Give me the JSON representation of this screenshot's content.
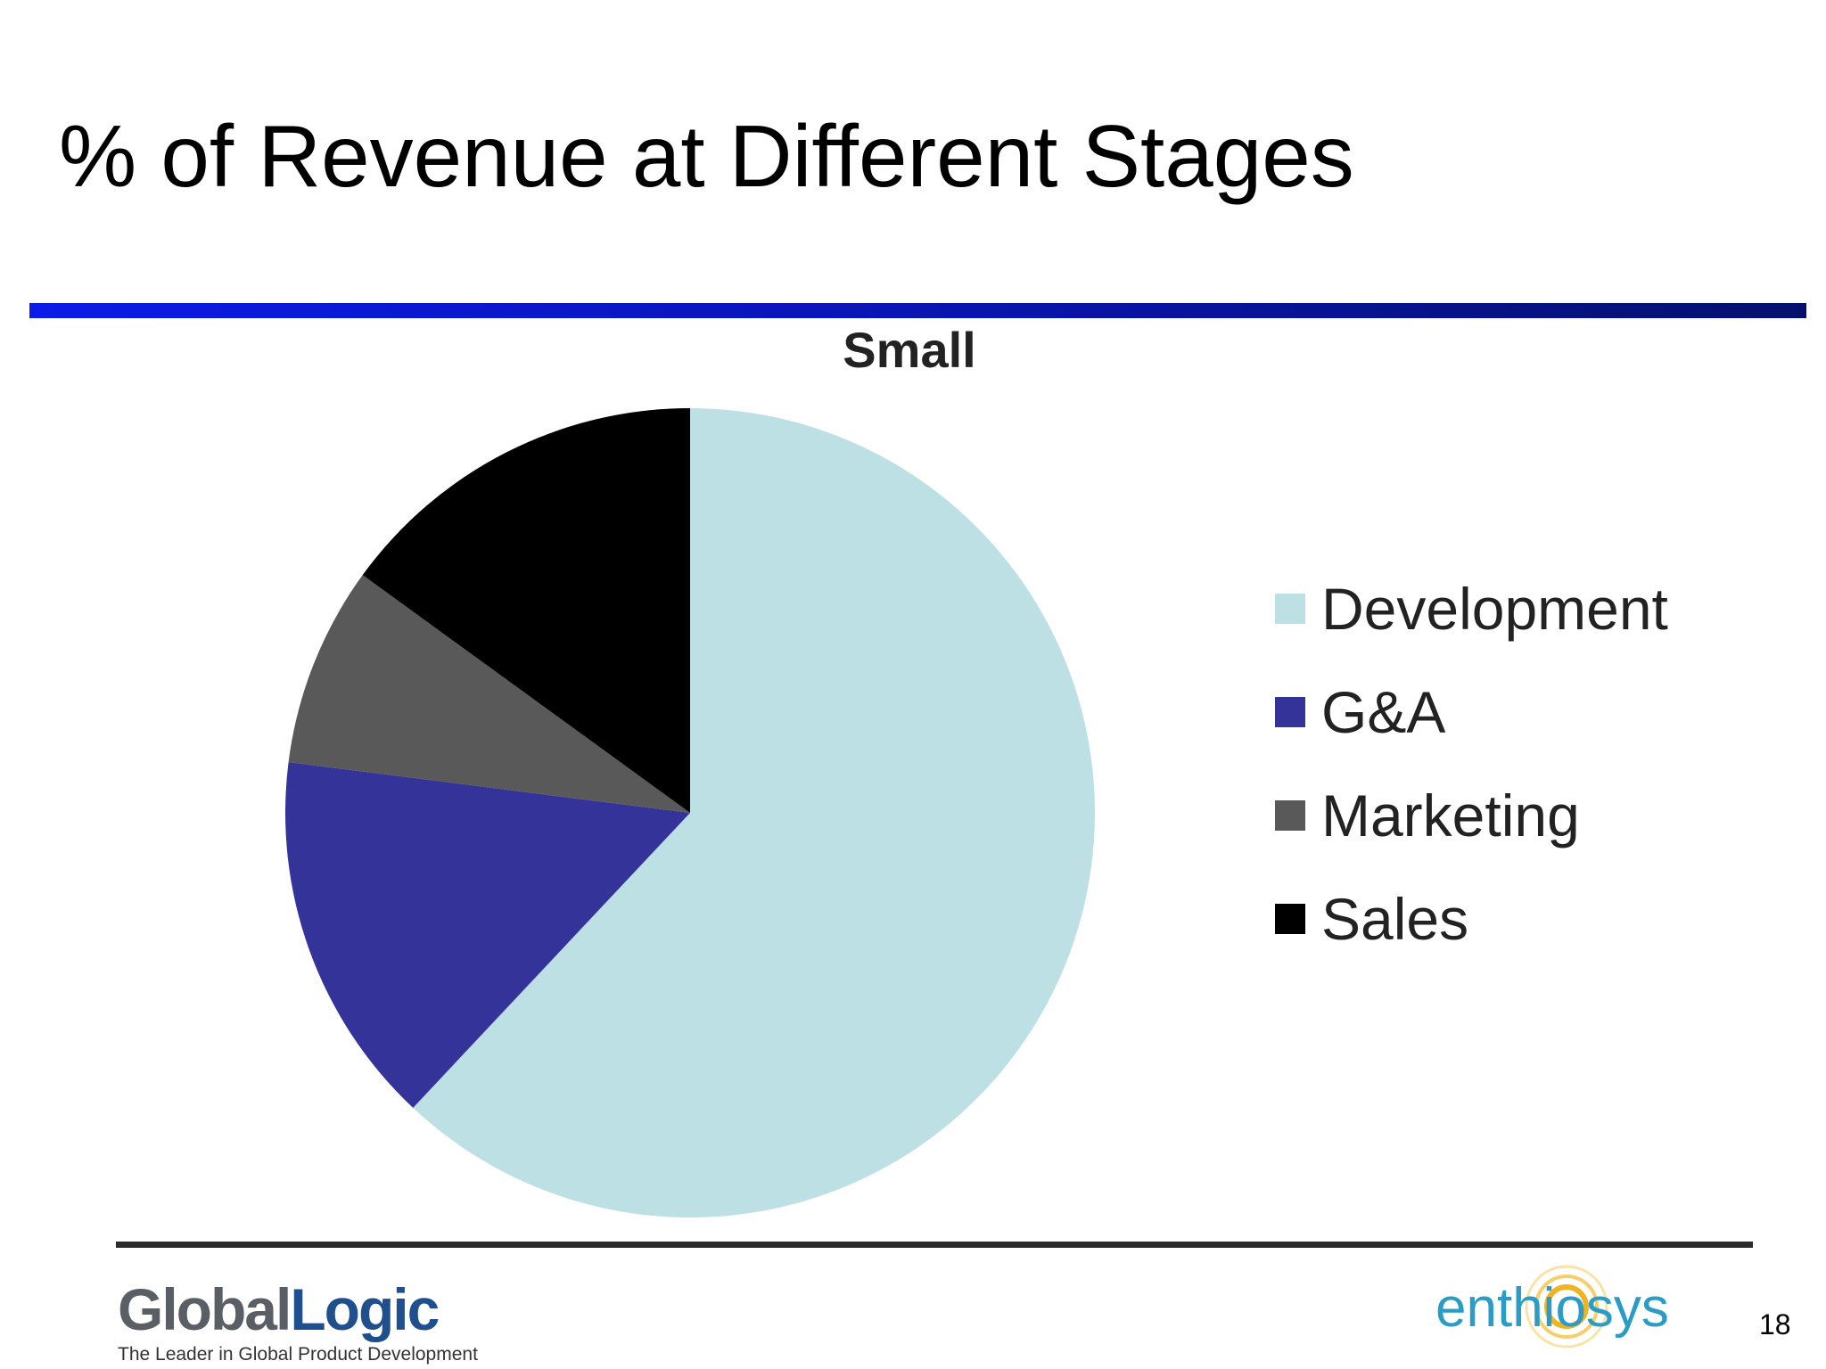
{
  "slide": {
    "title": "% of Revenue at Different Stages",
    "page_number": "18"
  },
  "chart_data": {
    "type": "pie",
    "title": "Small",
    "categories": [
      "Development",
      "G&A",
      "Marketing",
      "Sales"
    ],
    "values": [
      62,
      15,
      8,
      15
    ],
    "unit": "%",
    "colors": [
      "#bde0e4",
      "#343399",
      "#595959",
      "#000000"
    ],
    "legend_position": "right"
  },
  "footer": {
    "left_logo": {
      "brand_part1": "Global",
      "brand_part2": "Logic",
      "tagline": "The Leader in Global Product Development"
    },
    "right_logo": {
      "brand": "enthiosys"
    }
  }
}
